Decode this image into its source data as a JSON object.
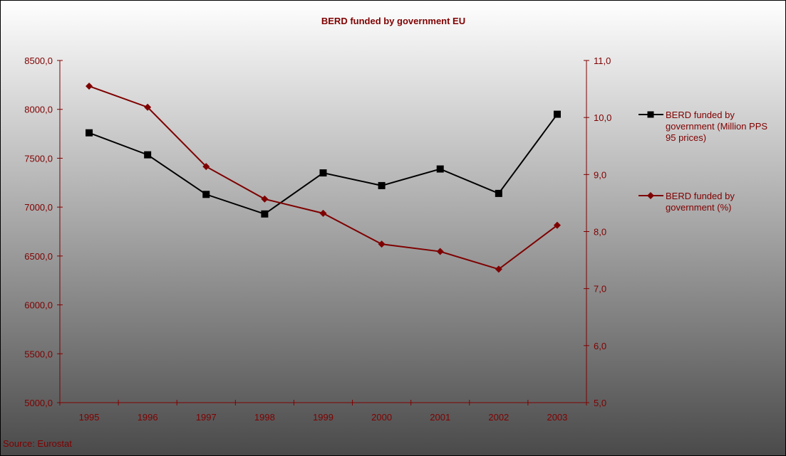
{
  "chart_data": {
    "type": "line",
    "title": "BERD funded by government EU",
    "source": "Source: Eurostat",
    "categories": [
      "1995",
      "1996",
      "1997",
      "1998",
      "1999",
      "2000",
      "2001",
      "2002",
      "2003"
    ],
    "left_axis": {
      "range": [
        5000,
        8500
      ],
      "ticks": [
        "5000,0",
        "5500,0",
        "6000,0",
        "6500,0",
        "7000,0",
        "7500,0",
        "8000,0",
        "8500,0"
      ]
    },
    "right_axis": {
      "range": [
        5,
        11
      ],
      "ticks": [
        "5,0",
        "6,0",
        "7,0",
        "8,0",
        "9,0",
        "10,0",
        "11,0"
      ]
    },
    "series": [
      {
        "name": "BERD funded by government (Million PPS 95 prices)",
        "legend_lines": [
          "BERD funded by",
          "government (Million PPS",
          "95 prices)"
        ],
        "axis": "left",
        "marker": "square",
        "color": "#000000",
        "values": [
          7760,
          7535,
          7130,
          6930,
          7350,
          7220,
          7390,
          7140,
          7950
        ]
      },
      {
        "name": "BERD funded by government (%)",
        "legend_lines": [
          "BERD funded by",
          "government (%)"
        ],
        "axis": "right",
        "marker": "diamond",
        "color": "#7f0000",
        "values": [
          10.55,
          10.18,
          9.14,
          8.57,
          8.32,
          7.78,
          7.65,
          7.34,
          8.11
        ]
      }
    ],
    "colors": {
      "title": "#800000",
      "left_axis": "#800000",
      "right_axis": "#800000",
      "background_top": "#ffffff",
      "background_bottom": "#4a4a4a"
    },
    "legend_position": "right",
    "grid": false
  }
}
